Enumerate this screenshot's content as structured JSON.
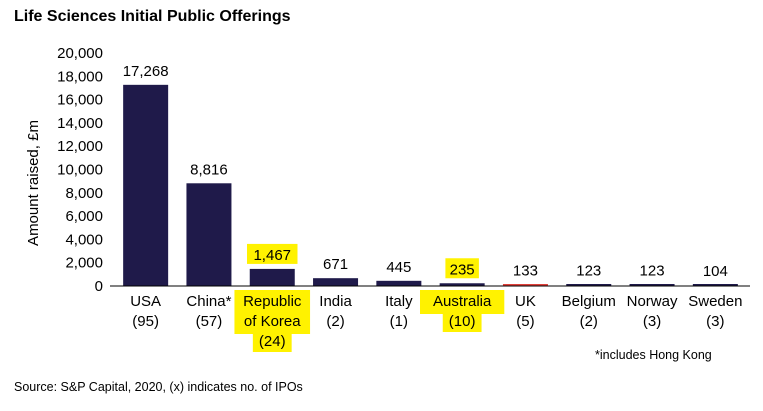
{
  "chart_data": {
    "type": "bar",
    "title": "Life Sciences Initial Public Offerings",
    "ylabel": "Amount raised, £m",
    "xlabel": "",
    "ylim": [
      0,
      20000
    ],
    "yticks": [
      "0",
      "2,000",
      "4,000",
      "6,000",
      "8,000",
      "10,000",
      "12,000",
      "14,000",
      "16,000",
      "18,000",
      "20,000"
    ],
    "categories": [
      {
        "name": "USA",
        "name2": "",
        "count": "(95)",
        "value": 17268,
        "label": "17,268",
        "color": "#1f1a4a",
        "highlight": false
      },
      {
        "name": "China*",
        "name2": "",
        "count": "(57)",
        "value": 8816,
        "label": "8,816",
        "color": "#1f1a4a",
        "highlight": false
      },
      {
        "name": "Republic",
        "name2": "of Korea",
        "count": "(24)",
        "value": 1467,
        "label": "1,467",
        "color": "#1f1a4a",
        "highlight": true
      },
      {
        "name": "India",
        "name2": "",
        "count": "(2)",
        "value": 671,
        "label": "671",
        "color": "#1f1a4a",
        "highlight": false
      },
      {
        "name": "Italy",
        "name2": "",
        "count": "(1)",
        "value": 445,
        "label": "445",
        "color": "#1f1a4a",
        "highlight": false
      },
      {
        "name": "Australia",
        "name2": "",
        "count": "(10)",
        "value": 235,
        "label": "235",
        "color": "#1f1a4a",
        "highlight": true
      },
      {
        "name": "UK",
        "name2": "",
        "count": "(5)",
        "value": 133,
        "label": "133",
        "color": "#e0403a",
        "highlight": false
      },
      {
        "name": "Belgium",
        "name2": "",
        "count": "(2)",
        "value": 123,
        "label": "123",
        "color": "#1f1a4a",
        "highlight": false
      },
      {
        "name": "Norway",
        "name2": "",
        "count": "(3)",
        "value": 123,
        "label": "123",
        "color": "#1f1a4a",
        "highlight": false
      },
      {
        "name": "Sweden",
        "name2": "",
        "count": "(3)",
        "value": 104,
        "label": "104",
        "color": "#1f1a4a",
        "highlight": false
      }
    ],
    "highlight_color": "#fff200"
  },
  "footnote": "*includes Hong Kong",
  "source": "Source: S&P Capital, 2020, (x) indicates no. of IPOs"
}
